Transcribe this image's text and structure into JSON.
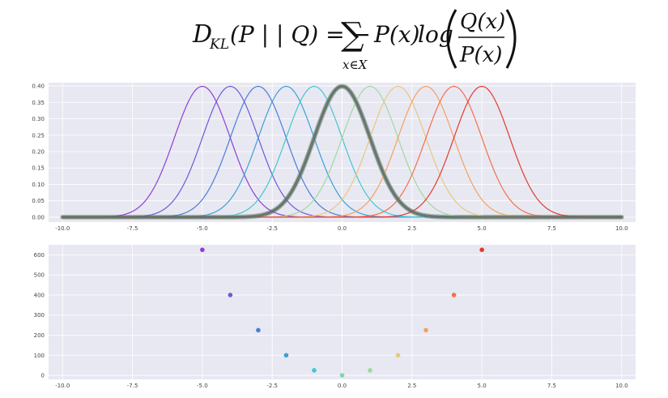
{
  "formula": {
    "lhs_D": "D",
    "lhs_sub": "KL",
    "lhs_args": "(P | | Q) = −",
    "sigma": "∑",
    "sigma_sub": "x∈X",
    "px": "P(x)",
    "log": "log",
    "numerator": "Q(x)",
    "denominator": "P(x)"
  },
  "chart_data": [
    {
      "type": "line",
      "title": "",
      "xlabel": "",
      "ylabel": "",
      "xlim": [
        -10.5,
        10.5
      ],
      "ylim": [
        -0.015,
        0.41
      ],
      "x_ticks": [
        -10.0,
        -7.5,
        -5.0,
        -2.5,
        0.0,
        2.5,
        5.0,
        7.5,
        10.0
      ],
      "x_tick_labels": [
        "-10.0",
        "-7.5",
        "-5.0",
        "-2.5",
        "0.0",
        "2.5",
        "5.0",
        "7.5",
        "10.0"
      ],
      "y_ticks": [
        0.0,
        0.05,
        0.1,
        0.15,
        0.2,
        0.25,
        0.3,
        0.35,
        0.4
      ],
      "y_tick_labels": [
        "0.00",
        "0.05",
        "0.10",
        "0.15",
        "0.20",
        "0.25",
        "0.30",
        "0.35",
        "0.40"
      ],
      "grid": true,
      "x_range": [
        -10,
        10
      ],
      "sigma": 1,
      "series": [
        {
          "mean": -5,
          "color": "#8a40d8"
        },
        {
          "mean": -4,
          "color": "#6a5ad8"
        },
        {
          "mean": -3,
          "color": "#4a7cd8"
        },
        {
          "mean": -2,
          "color": "#3aa0d8"
        },
        {
          "mean": -1,
          "color": "#40c8d0"
        },
        {
          "mean": 1,
          "color": "#a0d8a0"
        },
        {
          "mean": 2,
          "color": "#e8c880"
        },
        {
          "mean": 3,
          "color": "#f4a060"
        },
        {
          "mean": 4,
          "color": "#f47048"
        },
        {
          "mean": 5,
          "color": "#e03a30"
        }
      ],
      "reference": {
        "mean": 0,
        "color": "#5a6e62",
        "halo": "#7a8a80"
      }
    },
    {
      "type": "scatter",
      "title": "",
      "xlabel": "",
      "ylabel": "",
      "xlim": [
        -10.5,
        10.5
      ],
      "ylim": [
        -20,
        650
      ],
      "x_ticks": [
        -10.0,
        -7.5,
        -5.0,
        -2.5,
        0.0,
        2.5,
        5.0,
        7.5,
        10.0
      ],
      "x_tick_labels": [
        "-10.0",
        "-7.5",
        "-5.0",
        "-2.5",
        "0.0",
        "2.5",
        "5.0",
        "7.5",
        "10.0"
      ],
      "y_ticks": [
        0,
        100,
        200,
        300,
        400,
        500,
        600
      ],
      "y_tick_labels": [
        "0",
        "100",
        "200",
        "300",
        "400",
        "500",
        "600"
      ],
      "grid": true,
      "points": [
        {
          "x": -5,
          "y": 625,
          "color": "#8a40d8"
        },
        {
          "x": -4,
          "y": 400,
          "color": "#6a5ad8"
        },
        {
          "x": -3,
          "y": 225,
          "color": "#4a7cd8"
        },
        {
          "x": -2,
          "y": 100,
          "color": "#3aa0d8"
        },
        {
          "x": -1,
          "y": 25,
          "color": "#40c8d0"
        },
        {
          "x": 0,
          "y": 0,
          "color": "#7ad8a8"
        },
        {
          "x": 1,
          "y": 25,
          "color": "#a0d8a0"
        },
        {
          "x": 2,
          "y": 100,
          "color": "#e8c880"
        },
        {
          "x": 3,
          "y": 225,
          "color": "#f4a060"
        },
        {
          "x": 4,
          "y": 400,
          "color": "#f47048"
        },
        {
          "x": 5,
          "y": 625,
          "color": "#e03a30"
        }
      ]
    }
  ]
}
